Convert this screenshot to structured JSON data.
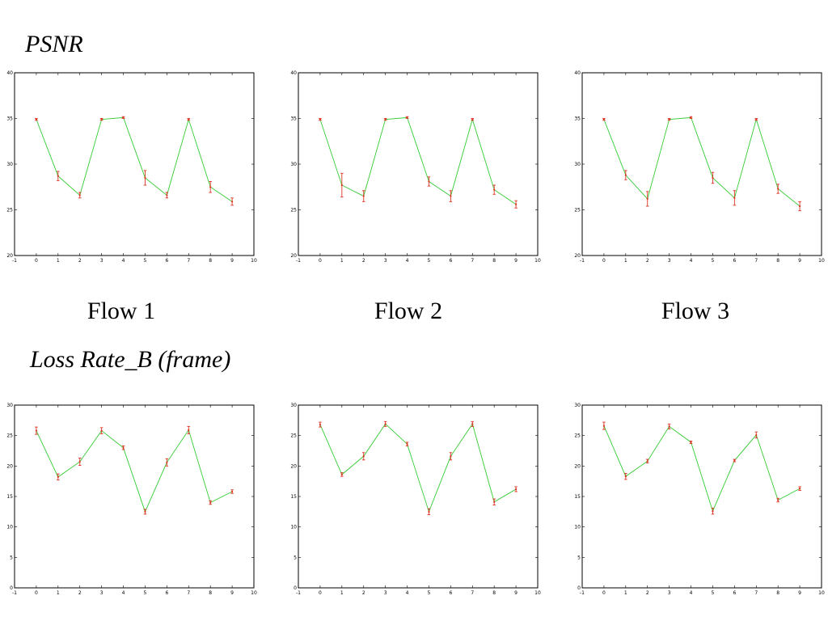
{
  "headings": {
    "psnr": "PSNR",
    "loss": "Loss Rate_B (frame)"
  },
  "flows": [
    "Flow 1",
    "Flow 2",
    "Flow 3"
  ],
  "colors": {
    "line": "#33cc33",
    "error_bar": "#dd3322",
    "point": "#dd3322"
  },
  "chart_data": [
    {
      "id": "psnr-flow1",
      "type": "line",
      "title": "",
      "xlabel": "",
      "ylabel": "",
      "xlim": [
        -1,
        10
      ],
      "ylim": [
        20,
        40
      ],
      "x_ticks": [
        -1,
        0,
        1,
        2,
        3,
        4,
        5,
        6,
        7,
        8,
        9,
        10
      ],
      "y_ticks": [
        20,
        25,
        30,
        35,
        40
      ],
      "grid": false,
      "error_bars": true,
      "x": [
        0,
        1,
        2,
        3,
        4,
        5,
        6,
        7,
        8,
        9
      ],
      "series": [
        {
          "values": [
            34.9,
            28.7,
            26.6,
            34.9,
            35.1,
            28.5,
            26.6,
            34.9,
            27.5,
            25.9
          ],
          "errors": [
            0.1,
            0.5,
            0.3,
            0.1,
            0.1,
            0.8,
            0.3,
            0.1,
            0.6,
            0.4
          ]
        }
      ]
    },
    {
      "id": "psnr-flow2",
      "type": "line",
      "title": "",
      "xlabel": "",
      "ylabel": "",
      "xlim": [
        -1,
        10
      ],
      "ylim": [
        20,
        40
      ],
      "x_ticks": [
        -1,
        0,
        1,
        2,
        3,
        4,
        5,
        6,
        7,
        8,
        9,
        10
      ],
      "y_ticks": [
        20,
        25,
        30,
        35,
        40
      ],
      "grid": false,
      "error_bars": true,
      "x": [
        0,
        1,
        2,
        3,
        4,
        5,
        6,
        7,
        8,
        9
      ],
      "series": [
        {
          "values": [
            34.9,
            27.7,
            26.5,
            34.9,
            35.1,
            28.1,
            26.5,
            34.9,
            27.2,
            25.6
          ],
          "errors": [
            0.1,
            1.3,
            0.6,
            0.1,
            0.1,
            0.5,
            0.6,
            0.1,
            0.5,
            0.4
          ]
        }
      ]
    },
    {
      "id": "psnr-flow3",
      "type": "line",
      "title": "",
      "xlabel": "",
      "ylabel": "",
      "xlim": [
        -1,
        10
      ],
      "ylim": [
        20,
        40
      ],
      "x_ticks": [
        -1,
        0,
        1,
        2,
        3,
        4,
        5,
        6,
        7,
        8,
        9,
        10
      ],
      "y_ticks": [
        20,
        25,
        30,
        35,
        40
      ],
      "grid": false,
      "error_bars": true,
      "x": [
        0,
        1,
        2,
        3,
        4,
        5,
        6,
        7,
        8,
        9
      ],
      "series": [
        {
          "values": [
            34.9,
            28.8,
            26.2,
            34.9,
            35.1,
            28.5,
            26.3,
            34.9,
            27.3,
            25.4
          ],
          "errors": [
            0.1,
            0.5,
            0.8,
            0.1,
            0.1,
            0.6,
            0.8,
            0.1,
            0.5,
            0.5
          ]
        }
      ]
    },
    {
      "id": "loss-flow1",
      "type": "line",
      "title": "",
      "xlabel": "",
      "ylabel": "",
      "xlim": [
        -1,
        10
      ],
      "ylim": [
        0,
        30
      ],
      "x_ticks": [
        -1,
        0,
        1,
        2,
        3,
        4,
        5,
        6,
        7,
        8,
        9,
        10
      ],
      "y_ticks": [
        0,
        5,
        10,
        15,
        20,
        25,
        30
      ],
      "grid": false,
      "error_bars": true,
      "x": [
        0,
        1,
        2,
        3,
        4,
        5,
        6,
        7,
        8,
        9
      ],
      "series": [
        {
          "values": [
            25.8,
            18.2,
            20.7,
            25.8,
            23.0,
            12.5,
            20.6,
            25.9,
            14.0,
            15.8
          ],
          "errors": [
            0.6,
            0.5,
            0.6,
            0.5,
            0.3,
            0.4,
            0.6,
            0.6,
            0.3,
            0.3
          ]
        }
      ]
    },
    {
      "id": "loss-flow2",
      "type": "line",
      "title": "",
      "xlabel": "",
      "ylabel": "",
      "xlim": [
        -1,
        10
      ],
      "ylim": [
        0,
        30
      ],
      "x_ticks": [
        -1,
        0,
        1,
        2,
        3,
        4,
        5,
        6,
        7,
        8,
        9,
        10
      ],
      "y_ticks": [
        0,
        5,
        10,
        15,
        20,
        25,
        30
      ],
      "grid": false,
      "error_bars": true,
      "x": [
        0,
        1,
        2,
        3,
        4,
        5,
        6,
        7,
        8,
        9
      ],
      "series": [
        {
          "values": [
            26.8,
            18.6,
            21.6,
            26.9,
            23.6,
            12.5,
            21.6,
            26.9,
            14.1,
            16.2
          ],
          "errors": [
            0.4,
            0.3,
            0.6,
            0.4,
            0.3,
            0.5,
            0.6,
            0.4,
            0.5,
            0.4
          ]
        }
      ]
    },
    {
      "id": "loss-flow3",
      "type": "line",
      "title": "",
      "xlabel": "",
      "ylabel": "",
      "xlim": [
        -1,
        10
      ],
      "ylim": [
        0,
        30
      ],
      "x_ticks": [
        -1,
        0,
        1,
        2,
        3,
        4,
        5,
        6,
        7,
        8,
        9,
        10
      ],
      "y_ticks": [
        0,
        5,
        10,
        15,
        20,
        25,
        30
      ],
      "grid": false,
      "error_bars": true,
      "x": [
        0,
        1,
        2,
        3,
        4,
        5,
        6,
        7,
        8,
        9
      ],
      "series": [
        {
          "values": [
            26.6,
            18.3,
            20.8,
            26.5,
            23.9,
            12.6,
            20.9,
            25.1,
            14.4,
            16.3
          ],
          "errors": [
            0.6,
            0.5,
            0.3,
            0.4,
            0.2,
            0.5,
            0.2,
            0.5,
            0.3,
            0.3
          ]
        }
      ]
    }
  ]
}
